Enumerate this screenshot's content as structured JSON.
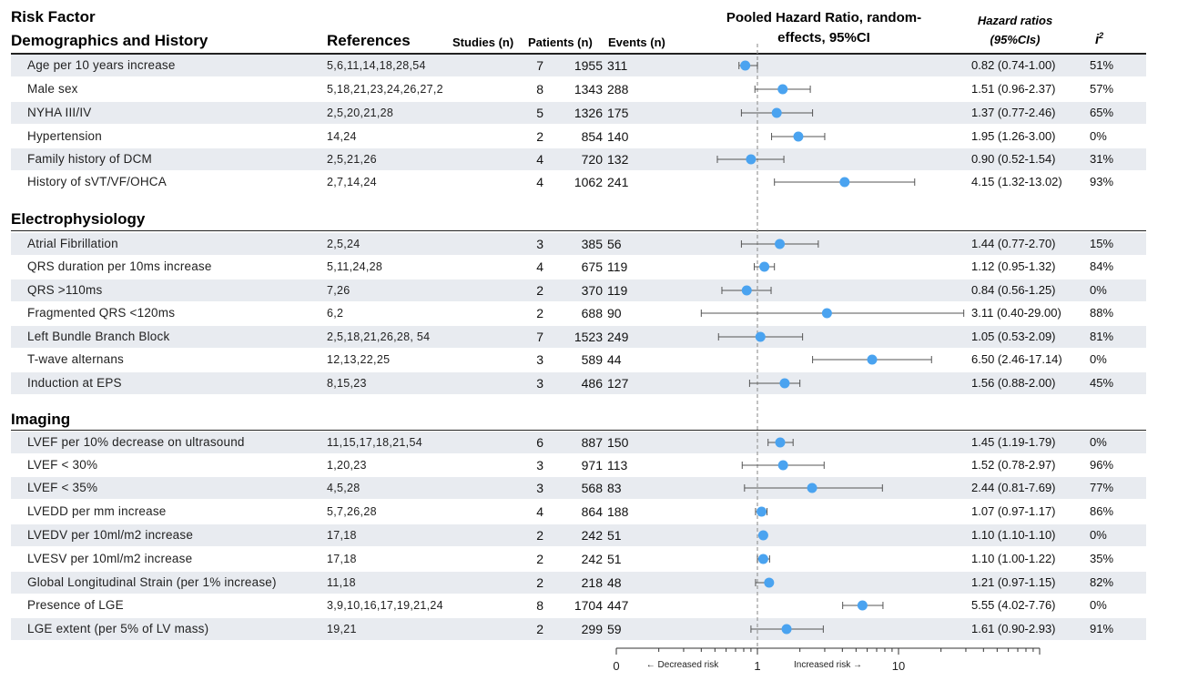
{
  "headers": {
    "risk_factor": "Risk Factor",
    "demographics": "Demographics and History",
    "references": "References",
    "studies": "Studies (n)",
    "patients": "Patients (n)",
    "events": "Events (n)",
    "pooled_line1": "Pooled Hazard Ratio, random-",
    "pooled_line2": "effects, 95%CI",
    "hr_line1": "Hazard ratios",
    "hr_line2": "(95%CIs)",
    "i2_base": "i",
    "i2_sup": "2"
  },
  "sections": {
    "electrophysiology": "Electrophysiology",
    "imaging": "Imaging"
  },
  "colors": {
    "point": "#4aa3f0",
    "ci_line": "#555555",
    "row_shade": "#e8ebf0",
    "ref_line": "#999999"
  },
  "chart_data": {
    "type": "forest",
    "x_scale": "log",
    "xlim": [
      0.1,
      100
    ],
    "reference_line": 1,
    "x_tick_labels": [
      "0",
      "1",
      "10"
    ],
    "x_minor_ticks": [
      0.2,
      0.3,
      0.4,
      0.5,
      0.6,
      0.7,
      0.8,
      0.9,
      2,
      3,
      4,
      5,
      6,
      7,
      8,
      9,
      20,
      30,
      40,
      50,
      60,
      70,
      80,
      90
    ],
    "axis_annotations": {
      "left": "← Decreased risk",
      "right": "Increased risk →"
    },
    "rows": [
      {
        "name": "Age per 10 years increase",
        "refs": "5,6,11,14,18,28,54",
        "studies": "7",
        "patients": "1955",
        "events": "311",
        "hr": 0.82,
        "lo": 0.74,
        "hi": 1.0,
        "hr_text": "0.82 (0.74-1.00)",
        "i2": "51%"
      },
      {
        "name": "Male sex",
        "refs": "5,18,21,23,24,26,27,2",
        "studies": "8",
        "patients": "1343",
        "events": "288",
        "hr": 1.51,
        "lo": 0.96,
        "hi": 2.37,
        "hr_text": "1.51 (0.96-2.37)",
        "i2": "57%"
      },
      {
        "name": "NYHA III/IV",
        "refs": "2,5,20,21,28",
        "studies": "5",
        "patients": "1326",
        "events": "175",
        "hr": 1.37,
        "lo": 0.77,
        "hi": 2.46,
        "hr_text": "1.37 (0.77-2.46)",
        "i2": "65%"
      },
      {
        "name": "Hypertension",
        "refs": "14,24",
        "studies": "2",
        "patients": "854",
        "events": "140",
        "hr": 1.95,
        "lo": 1.26,
        "hi": 3.0,
        "hr_text": "1.95 (1.26-3.00)",
        "i2": "0%"
      },
      {
        "name": "Family history of DCM",
        "refs": "2,5,21,26",
        "studies": "4",
        "patients": "720",
        "events": "132",
        "hr": 0.9,
        "lo": 0.52,
        "hi": 1.54,
        "hr_text": "0.90 (0.52-1.54)",
        "i2": "31%"
      },
      {
        "name": "History of sVT/VF/OHCA",
        "refs": "2,7,14,24",
        "studies": "4",
        "patients": "1062",
        "events": "241",
        "hr": 4.15,
        "lo": 1.32,
        "hi": 13.02,
        "hr_text": "4.15 (1.32-13.02)",
        "i2": "93%"
      },
      {
        "name": "Atrial Fibrillation",
        "refs": "2,5,24",
        "studies": "3",
        "patients": "385",
        "events": "56",
        "hr": 1.44,
        "lo": 0.77,
        "hi": 2.7,
        "hr_text": "1.44 (0.77-2.70)",
        "i2": "15%"
      },
      {
        "name": "QRS duration per 10ms increase",
        "refs": "5,11,24,28",
        "studies": "4",
        "patients": "675",
        "events": "119",
        "hr": 1.12,
        "lo": 0.95,
        "hi": 1.32,
        "hr_text": "1.12 (0.95-1.32)",
        "i2": "84%"
      },
      {
        "name": "QRS >110ms",
        "refs": "7,26",
        "studies": "2",
        "patients": "370",
        "events": "119",
        "hr": 0.84,
        "lo": 0.56,
        "hi": 1.25,
        "hr_text": "0.84 (0.56-1.25)",
        "i2": "0%"
      },
      {
        "name": "Fragmented QRS <120ms",
        "refs": "6,2",
        "studies": "2",
        "patients": "688",
        "events": "90",
        "hr": 3.11,
        "lo": 0.4,
        "hi": 29.0,
        "hr_text": "3.11 (0.40-29.00)",
        "i2": "88%"
      },
      {
        "name": "Left Bundle Branch Block",
        "refs": "2,5,18,21,26,28, 54",
        "studies": "7",
        "patients": "1523",
        "events": "249",
        "hr": 1.05,
        "lo": 0.53,
        "hi": 2.09,
        "hr_text": "1.05 (0.53-2.09)",
        "i2": "81%"
      },
      {
        "name": "T-wave alternans",
        "refs": "12,13,22,25",
        "studies": "3",
        "patients": "589",
        "events": "44",
        "hr": 6.5,
        "lo": 2.46,
        "hi": 17.14,
        "hr_text": "6.50 (2.46-17.14)",
        "i2": "0%"
      },
      {
        "name": "Induction at EPS",
        "refs": "8,15,23",
        "studies": "3",
        "patients": "486",
        "events": "127",
        "hr": 1.56,
        "lo": 0.88,
        "hi": 2.0,
        "hr_text": "1.56 (0.88-2.00)",
        "i2": "45%"
      },
      {
        "name": "LVEF per 10% decrease on ultrasound",
        "refs": "11,15,17,18,21,54",
        "studies": "6",
        "patients": "887",
        "events": "150",
        "hr": 1.45,
        "lo": 1.19,
        "hi": 1.79,
        "hr_text": "1.45 (1.19-1.79)",
        "i2": "0%"
      },
      {
        "name": "LVEF < 30%",
        "refs": "1,20,23",
        "studies": "3",
        "patients": "971",
        "events": "113",
        "hr": 1.52,
        "lo": 0.78,
        "hi": 2.97,
        "hr_text": "1.52 (0.78-2.97)",
        "i2": "96%"
      },
      {
        "name": "LVEF < 35%",
        "refs": "4,5,28",
        "studies": "3",
        "patients": "568",
        "events": "83",
        "hr": 2.44,
        "lo": 0.81,
        "hi": 7.69,
        "hr_text": "2.44 (0.81-7.69)",
        "i2": "77%"
      },
      {
        "name": "LVEDD per mm increase",
        "refs": "5,7,26,28",
        "studies": "4",
        "patients": "864",
        "events": "188",
        "hr": 1.07,
        "lo": 0.97,
        "hi": 1.17,
        "hr_text": "1.07 (0.97-1.17)",
        "i2": "86%"
      },
      {
        "name": "LVEDV per 10ml/m2 increase",
        "refs": "17,18",
        "studies": "2",
        "patients": "242",
        "events": "51",
        "hr": 1.1,
        "lo": 1.1,
        "hi": 1.1,
        "hr_text": "1.10 (1.10-1.10)",
        "i2": "0%"
      },
      {
        "name": "LVESV per 10ml/m2 increase",
        "refs": "17,18",
        "studies": "2",
        "patients": "242",
        "events": "51",
        "hr": 1.1,
        "lo": 1.0,
        "hi": 1.22,
        "hr_text": "1.10 (1.00-1.22)",
        "i2": "35%"
      },
      {
        "name": "Global Longitudinal Strain (per 1% increase)",
        "refs": "11,18",
        "studies": "2",
        "patients": "218",
        "events": "48",
        "hr": 1.21,
        "lo": 0.97,
        "hi": 1.15,
        "hr_text": "1.21 (0.97-1.15)",
        "i2": "82%"
      },
      {
        "name": "Presence of LGE",
        "refs": "3,9,10,16,17,19,21,24",
        "studies": "8",
        "patients": "1704",
        "events": "447",
        "hr": 5.55,
        "lo": 4.02,
        "hi": 7.76,
        "hr_text": "5.55 (4.02-7.76)",
        "i2": "0%"
      },
      {
        "name": "LGE extent (per 5% of LV mass)",
        "refs": "19,21",
        "studies": "2",
        "patients": "299",
        "events": "59",
        "hr": 1.61,
        "lo": 0.9,
        "hi": 2.93,
        "hr_text": "1.61 (0.90-2.93)",
        "i2": "91%"
      }
    ]
  }
}
